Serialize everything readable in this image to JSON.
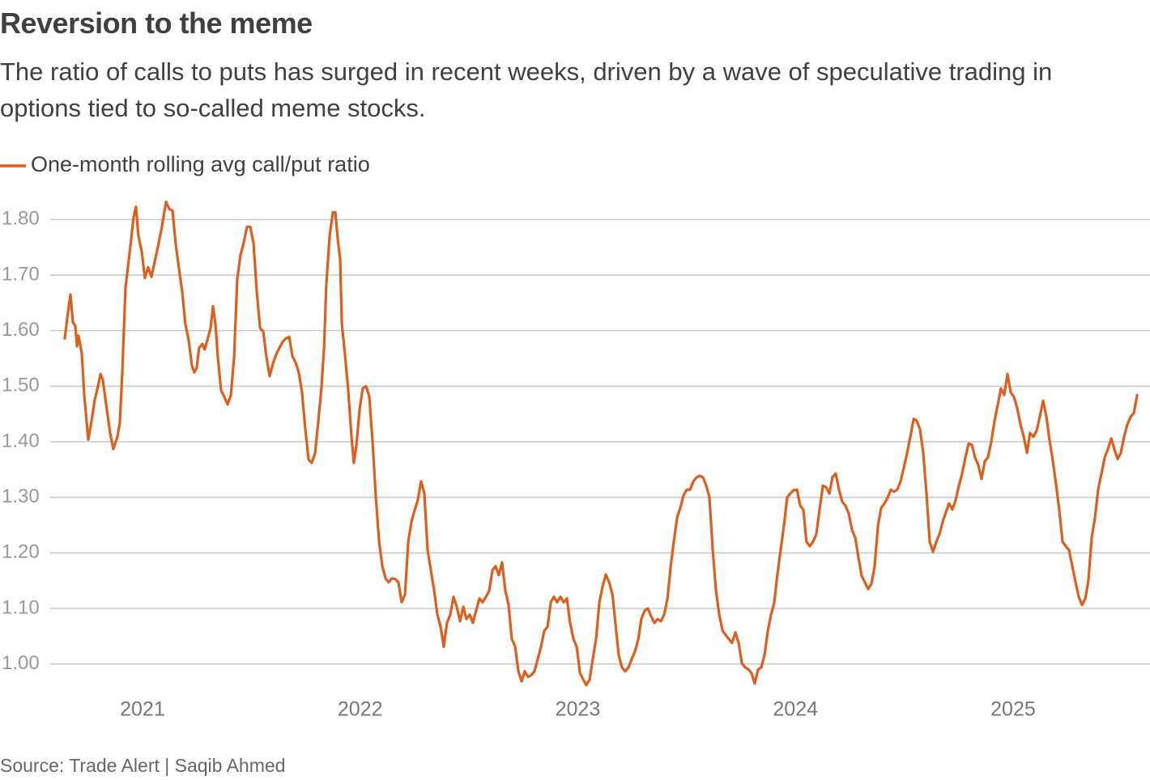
{
  "chart_data": {
    "type": "line",
    "title": "Reversion to the meme",
    "subtitle": "The ratio of calls to puts has surged in recent weeks, driven by a wave of speculative trading in options tied to so-called meme stocks.",
    "source": "Source: Trade Alert | Saqib Ahmed",
    "xlim": [
      2020.576,
      2025.629
    ],
    "xticks": [
      2021,
      2022,
      2023,
      2024,
      2025
    ],
    "ylim": [
      0.95,
      1.85
    ],
    "yticks": [
      {
        "value": 1.0,
        "label": "1.00"
      },
      {
        "value": 1.1,
        "label": "1.10"
      },
      {
        "value": 1.2,
        "label": "1.20"
      },
      {
        "value": 1.3,
        "label": "1.30"
      },
      {
        "value": 1.4,
        "label": "1.40"
      },
      {
        "value": 1.5,
        "label": "1.50"
      },
      {
        "value": 1.6,
        "label": "1.60"
      },
      {
        "value": 1.7,
        "label": "1.70"
      },
      {
        "value": 1.8,
        "label": "1.80"
      }
    ],
    "grid": true,
    "legend": "top-left",
    "x": [
      2020.643,
      2020.658,
      2020.669,
      2020.68,
      2020.691,
      2020.699,
      2020.706,
      2020.721,
      2020.732,
      2020.751,
      2020.766,
      2020.78,
      2020.795,
      2020.807,
      2020.818,
      2020.833,
      2020.851,
      2020.866,
      2020.885,
      2020.896,
      2020.907,
      2020.922,
      2020.933,
      2020.948,
      2020.959,
      2020.97,
      2020.981,
      2020.996,
      2021.011,
      2021.026,
      2021.041,
      2021.056,
      2021.071,
      2021.089,
      2021.108,
      2021.123,
      2021.138,
      2021.152,
      2021.167,
      2021.182,
      2021.197,
      2021.212,
      2021.227,
      2021.238,
      2021.249,
      2021.26,
      2021.275,
      2021.286,
      2021.298,
      2021.313,
      2021.324,
      2021.335,
      2021.346,
      2021.361,
      2021.376,
      2021.391,
      2021.406,
      2021.421,
      2021.435,
      2021.45,
      2021.465,
      2021.48,
      2021.495,
      2021.51,
      2021.525,
      2021.54,
      2021.555,
      2021.569,
      2021.584,
      2021.599,
      2021.614,
      2021.629,
      2021.644,
      2021.659,
      2021.674,
      2021.689,
      2021.703,
      2021.718,
      2021.733,
      2021.748,
      2021.763,
      2021.778,
      2021.793,
      2021.808,
      2021.822,
      2021.834,
      2021.845,
      2021.86,
      2021.875,
      2021.886,
      2021.897,
      2021.908,
      2021.916,
      2021.931,
      2021.946,
      2021.96,
      2021.971,
      2021.983,
      2021.998,
      2022.012,
      2022.027,
      2022.042,
      2022.057,
      2022.072,
      2022.087,
      2022.102,
      2022.117,
      2022.131,
      2022.146,
      2022.161,
      2022.176,
      2022.191,
      2022.206,
      2022.221,
      2022.236,
      2022.251,
      2022.265,
      2022.28,
      2022.295,
      2022.31,
      2022.325,
      2022.34,
      2022.355,
      2022.37,
      2022.384,
      2022.399,
      2022.414,
      2022.429,
      2022.444,
      2022.459,
      2022.474,
      2022.488,
      2022.503,
      2022.518,
      2022.533,
      2022.548,
      2022.563,
      2022.578,
      2022.593,
      2022.608,
      2022.622,
      2022.637,
      2022.652,
      2022.667,
      2022.682,
      2022.697,
      2022.712,
      2022.727,
      2022.742,
      2022.756,
      2022.771,
      2022.786,
      2022.801,
      2022.816,
      2022.831,
      2022.846,
      2022.861,
      2022.876,
      2022.89,
      2022.905,
      2022.92,
      2022.935,
      2022.95,
      2022.965,
      2022.98,
      2022.995,
      2023.01,
      2023.025,
      2023.039,
      2023.054,
      2023.069,
      2023.084,
      2023.099,
      2023.114,
      2023.129,
      2023.144,
      2023.159,
      2023.173,
      2023.188,
      2023.203,
      2023.218,
      2023.233,
      2023.248,
      2023.263,
      2023.278,
      2023.292,
      2023.307,
      2023.322,
      2023.337,
      2023.352,
      2023.367,
      2023.382,
      2023.397,
      2023.412,
      2023.427,
      2023.441,
      2023.456,
      2023.471,
      2023.486,
      2023.501,
      2023.516,
      2023.531,
      2023.546,
      2023.561,
      2023.575,
      2023.59,
      2023.605,
      2023.62,
      2023.635,
      2023.65,
      2023.665,
      2023.68,
      2023.694,
      2023.709,
      2023.724,
      2023.739,
      2023.754,
      2023.769,
      2023.784,
      2023.798,
      2023.813,
      2023.828,
      2023.843,
      2023.858,
      2023.873,
      2023.888,
      2023.903,
      2023.917,
      2023.932,
      2023.947,
      2023.962,
      2023.977,
      2023.992,
      2024.007,
      2024.022,
      2024.036,
      2024.051,
      2024.066,
      2024.081,
      2024.096,
      2024.111,
      2024.126,
      2024.141,
      2024.156,
      2024.17,
      2024.185,
      2024.2,
      2024.215,
      2024.23,
      2024.245,
      2024.26,
      2024.275,
      2024.29,
      2024.304,
      2024.319,
      2024.334,
      2024.349,
      2024.364,
      2024.379,
      2024.394,
      2024.409,
      2024.424,
      2024.438,
      2024.453,
      2024.468,
      2024.483,
      2024.498,
      2024.513,
      2024.528,
      2024.543,
      2024.557,
      2024.572,
      2024.587,
      2024.602,
      2024.617,
      2024.632,
      2024.647,
      2024.662,
      2024.677,
      2024.691,
      2024.706,
      2024.721,
      2024.736,
      2024.751,
      2024.766,
      2024.781,
      2024.796,
      2024.811,
      2024.825,
      2024.84,
      2024.855,
      2024.87,
      2024.885,
      2024.9,
      2024.915,
      2024.93,
      2024.944,
      2024.959,
      2024.974,
      2024.989,
      2025.004,
      2025.019,
      2025.034,
      2025.049,
      2025.064,
      2025.078,
      2025.093,
      2025.108,
      2025.123,
      2025.138,
      2025.153,
      2025.168,
      2025.183,
      2025.198,
      2025.212,
      2025.227,
      2025.242,
      2025.257,
      2025.272,
      2025.287,
      2025.302,
      2025.317,
      2025.332,
      2025.346,
      2025.361,
      2025.376,
      2025.391,
      2025.406,
      2025.421,
      2025.436,
      2025.451,
      2025.465,
      2025.48,
      2025.495,
      2025.51,
      2025.525,
      2025.54,
      2025.555,
      2025.57
    ],
    "series": [
      {
        "name": "One-month rolling avg call/put ratio",
        "color": "#dc5f1e",
        "values": [
          1.586,
          1.634,
          1.665,
          1.615,
          1.609,
          1.572,
          1.591,
          1.559,
          1.486,
          1.404,
          1.438,
          1.474,
          1.499,
          1.522,
          1.511,
          1.467,
          1.416,
          1.387,
          1.409,
          1.435,
          1.525,
          1.678,
          1.714,
          1.765,
          1.804,
          1.823,
          1.772,
          1.743,
          1.695,
          1.714,
          1.697,
          1.724,
          1.751,
          1.787,
          1.832,
          1.819,
          1.816,
          1.758,
          1.714,
          1.671,
          1.612,
          1.583,
          1.537,
          1.525,
          1.533,
          1.569,
          1.576,
          1.566,
          1.583,
          1.605,
          1.644,
          1.612,
          1.554,
          1.492,
          1.481,
          1.467,
          1.484,
          1.554,
          1.692,
          1.736,
          1.758,
          1.787,
          1.787,
          1.758,
          1.671,
          1.605,
          1.598,
          1.554,
          1.518,
          1.54,
          1.557,
          1.569,
          1.58,
          1.586,
          1.589,
          1.554,
          1.543,
          1.525,
          1.489,
          1.423,
          1.368,
          1.362,
          1.38,
          1.438,
          1.496,
          1.569,
          1.685,
          1.772,
          1.813,
          1.813,
          1.765,
          1.729,
          1.612,
          1.554,
          1.489,
          1.409,
          1.362,
          1.394,
          1.46,
          1.496,
          1.5,
          1.481,
          1.401,
          1.3,
          1.22,
          1.176,
          1.154,
          1.147,
          1.154,
          1.153,
          1.147,
          1.111,
          1.125,
          1.22,
          1.256,
          1.278,
          1.295,
          1.329,
          1.307,
          1.205,
          1.169,
          1.132,
          1.089,
          1.067,
          1.031,
          1.074,
          1.089,
          1.121,
          1.103,
          1.077,
          1.103,
          1.081,
          1.089,
          1.074,
          1.096,
          1.118,
          1.111,
          1.121,
          1.132,
          1.169,
          1.176,
          1.16,
          1.183,
          1.132,
          1.106,
          1.045,
          1.031,
          0.987,
          0.969,
          0.987,
          0.977,
          0.98,
          0.987,
          1.009,
          1.031,
          1.06,
          1.067,
          1.111,
          1.121,
          1.111,
          1.121,
          1.111,
          1.118,
          1.074,
          1.045,
          1.031,
          0.984,
          0.972,
          0.962,
          0.972,
          1.009,
          1.045,
          1.111,
          1.14,
          1.161,
          1.147,
          1.125,
          1.074,
          1.016,
          0.994,
          0.987,
          0.994,
          1.009,
          1.023,
          1.045,
          1.081,
          1.096,
          1.1,
          1.086,
          1.074,
          1.081,
          1.077,
          1.089,
          1.118,
          1.176,
          1.22,
          1.263,
          1.281,
          1.304,
          1.314,
          1.314,
          1.329,
          1.336,
          1.339,
          1.336,
          1.321,
          1.3,
          1.205,
          1.132,
          1.089,
          1.06,
          1.052,
          1.045,
          1.038,
          1.057,
          1.038,
          1.001,
          0.994,
          0.99,
          0.984,
          0.965,
          0.99,
          0.994,
          1.016,
          1.06,
          1.089,
          1.111,
          1.161,
          1.205,
          1.249,
          1.3,
          1.307,
          1.313,
          1.314,
          1.285,
          1.278,
          1.22,
          1.212,
          1.22,
          1.234,
          1.278,
          1.321,
          1.318,
          1.307,
          1.336,
          1.343,
          1.314,
          1.292,
          1.285,
          1.271,
          1.241,
          1.227,
          1.191,
          1.159,
          1.147,
          1.135,
          1.144,
          1.176,
          1.249,
          1.281,
          1.289,
          1.3,
          1.314,
          1.31,
          1.314,
          1.329,
          1.353,
          1.38,
          1.409,
          1.441,
          1.438,
          1.423,
          1.38,
          1.307,
          1.22,
          1.202,
          1.22,
          1.234,
          1.256,
          1.273,
          1.289,
          1.278,
          1.295,
          1.321,
          1.343,
          1.372,
          1.397,
          1.394,
          1.372,
          1.358,
          1.333,
          1.365,
          1.372,
          1.401,
          1.438,
          1.467,
          1.496,
          1.484,
          1.522,
          1.489,
          1.481,
          1.46,
          1.431,
          1.409,
          1.38,
          1.416,
          1.409,
          1.42,
          1.445,
          1.474,
          1.445,
          1.401,
          1.365,
          1.321,
          1.278,
          1.22,
          1.212,
          1.205,
          1.176,
          1.147,
          1.121,
          1.106,
          1.118,
          1.15,
          1.227,
          1.263,
          1.314,
          1.343,
          1.372,
          1.387,
          1.406,
          1.387,
          1.369,
          1.38,
          1.409,
          1.431,
          1.445,
          1.452,
          1.484
        ]
      }
    ]
  }
}
